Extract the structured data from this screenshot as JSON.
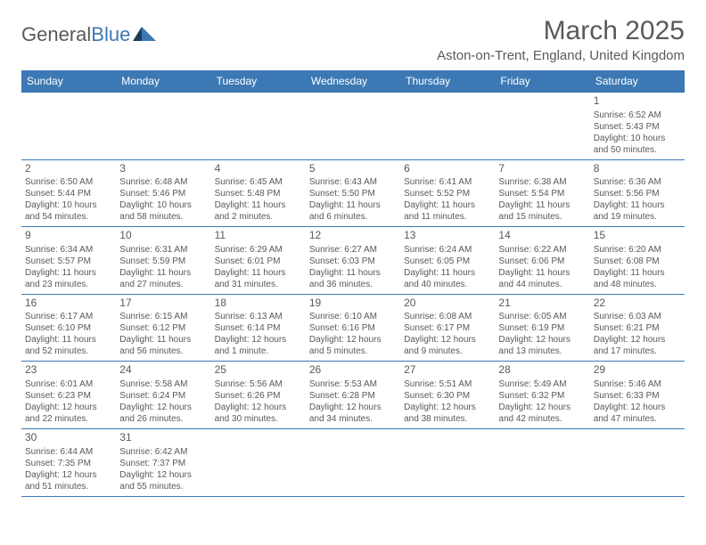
{
  "logo": {
    "part1": "General",
    "part2": "Blue"
  },
  "title": {
    "month": "March 2025",
    "location": "Aston-on-Trent, England, United Kingdom"
  },
  "headers": [
    "Sunday",
    "Monday",
    "Tuesday",
    "Wednesday",
    "Thursday",
    "Friday",
    "Saturday"
  ],
  "header_bg": "#3c79b4",
  "header_color": "#ffffff",
  "border_color": "#3c79b4",
  "text_color": "#595959",
  "weeks": [
    [
      null,
      null,
      null,
      null,
      null,
      null,
      {
        "n": "1",
        "sr": "Sunrise: 6:52 AM",
        "ss": "Sunset: 5:43 PM",
        "d1": "Daylight: 10 hours",
        "d2": "and 50 minutes."
      }
    ],
    [
      {
        "n": "2",
        "sr": "Sunrise: 6:50 AM",
        "ss": "Sunset: 5:44 PM",
        "d1": "Daylight: 10 hours",
        "d2": "and 54 minutes."
      },
      {
        "n": "3",
        "sr": "Sunrise: 6:48 AM",
        "ss": "Sunset: 5:46 PM",
        "d1": "Daylight: 10 hours",
        "d2": "and 58 minutes."
      },
      {
        "n": "4",
        "sr": "Sunrise: 6:45 AM",
        "ss": "Sunset: 5:48 PM",
        "d1": "Daylight: 11 hours",
        "d2": "and 2 minutes."
      },
      {
        "n": "5",
        "sr": "Sunrise: 6:43 AM",
        "ss": "Sunset: 5:50 PM",
        "d1": "Daylight: 11 hours",
        "d2": "and 6 minutes."
      },
      {
        "n": "6",
        "sr": "Sunrise: 6:41 AM",
        "ss": "Sunset: 5:52 PM",
        "d1": "Daylight: 11 hours",
        "d2": "and 11 minutes."
      },
      {
        "n": "7",
        "sr": "Sunrise: 6:38 AM",
        "ss": "Sunset: 5:54 PM",
        "d1": "Daylight: 11 hours",
        "d2": "and 15 minutes."
      },
      {
        "n": "8",
        "sr": "Sunrise: 6:36 AM",
        "ss": "Sunset: 5:56 PM",
        "d1": "Daylight: 11 hours",
        "d2": "and 19 minutes."
      }
    ],
    [
      {
        "n": "9",
        "sr": "Sunrise: 6:34 AM",
        "ss": "Sunset: 5:57 PM",
        "d1": "Daylight: 11 hours",
        "d2": "and 23 minutes."
      },
      {
        "n": "10",
        "sr": "Sunrise: 6:31 AM",
        "ss": "Sunset: 5:59 PM",
        "d1": "Daylight: 11 hours",
        "d2": "and 27 minutes."
      },
      {
        "n": "11",
        "sr": "Sunrise: 6:29 AM",
        "ss": "Sunset: 6:01 PM",
        "d1": "Daylight: 11 hours",
        "d2": "and 31 minutes."
      },
      {
        "n": "12",
        "sr": "Sunrise: 6:27 AM",
        "ss": "Sunset: 6:03 PM",
        "d1": "Daylight: 11 hours",
        "d2": "and 36 minutes."
      },
      {
        "n": "13",
        "sr": "Sunrise: 6:24 AM",
        "ss": "Sunset: 6:05 PM",
        "d1": "Daylight: 11 hours",
        "d2": "and 40 minutes."
      },
      {
        "n": "14",
        "sr": "Sunrise: 6:22 AM",
        "ss": "Sunset: 6:06 PM",
        "d1": "Daylight: 11 hours",
        "d2": "and 44 minutes."
      },
      {
        "n": "15",
        "sr": "Sunrise: 6:20 AM",
        "ss": "Sunset: 6:08 PM",
        "d1": "Daylight: 11 hours",
        "d2": "and 48 minutes."
      }
    ],
    [
      {
        "n": "16",
        "sr": "Sunrise: 6:17 AM",
        "ss": "Sunset: 6:10 PM",
        "d1": "Daylight: 11 hours",
        "d2": "and 52 minutes."
      },
      {
        "n": "17",
        "sr": "Sunrise: 6:15 AM",
        "ss": "Sunset: 6:12 PM",
        "d1": "Daylight: 11 hours",
        "d2": "and 56 minutes."
      },
      {
        "n": "18",
        "sr": "Sunrise: 6:13 AM",
        "ss": "Sunset: 6:14 PM",
        "d1": "Daylight: 12 hours",
        "d2": "and 1 minute."
      },
      {
        "n": "19",
        "sr": "Sunrise: 6:10 AM",
        "ss": "Sunset: 6:16 PM",
        "d1": "Daylight: 12 hours",
        "d2": "and 5 minutes."
      },
      {
        "n": "20",
        "sr": "Sunrise: 6:08 AM",
        "ss": "Sunset: 6:17 PM",
        "d1": "Daylight: 12 hours",
        "d2": "and 9 minutes."
      },
      {
        "n": "21",
        "sr": "Sunrise: 6:05 AM",
        "ss": "Sunset: 6:19 PM",
        "d1": "Daylight: 12 hours",
        "d2": "and 13 minutes."
      },
      {
        "n": "22",
        "sr": "Sunrise: 6:03 AM",
        "ss": "Sunset: 6:21 PM",
        "d1": "Daylight: 12 hours",
        "d2": "and 17 minutes."
      }
    ],
    [
      {
        "n": "23",
        "sr": "Sunrise: 6:01 AM",
        "ss": "Sunset: 6:23 PM",
        "d1": "Daylight: 12 hours",
        "d2": "and 22 minutes."
      },
      {
        "n": "24",
        "sr": "Sunrise: 5:58 AM",
        "ss": "Sunset: 6:24 PM",
        "d1": "Daylight: 12 hours",
        "d2": "and 26 minutes."
      },
      {
        "n": "25",
        "sr": "Sunrise: 5:56 AM",
        "ss": "Sunset: 6:26 PM",
        "d1": "Daylight: 12 hours",
        "d2": "and 30 minutes."
      },
      {
        "n": "26",
        "sr": "Sunrise: 5:53 AM",
        "ss": "Sunset: 6:28 PM",
        "d1": "Daylight: 12 hours",
        "d2": "and 34 minutes."
      },
      {
        "n": "27",
        "sr": "Sunrise: 5:51 AM",
        "ss": "Sunset: 6:30 PM",
        "d1": "Daylight: 12 hours",
        "d2": "and 38 minutes."
      },
      {
        "n": "28",
        "sr": "Sunrise: 5:49 AM",
        "ss": "Sunset: 6:32 PM",
        "d1": "Daylight: 12 hours",
        "d2": "and 42 minutes."
      },
      {
        "n": "29",
        "sr": "Sunrise: 5:46 AM",
        "ss": "Sunset: 6:33 PM",
        "d1": "Daylight: 12 hours",
        "d2": "and 47 minutes."
      }
    ],
    [
      {
        "n": "30",
        "sr": "Sunrise: 6:44 AM",
        "ss": "Sunset: 7:35 PM",
        "d1": "Daylight: 12 hours",
        "d2": "and 51 minutes."
      },
      {
        "n": "31",
        "sr": "Sunrise: 6:42 AM",
        "ss": "Sunset: 7:37 PM",
        "d1": "Daylight: 12 hours",
        "d2": "and 55 minutes."
      },
      null,
      null,
      null,
      null,
      null
    ]
  ]
}
